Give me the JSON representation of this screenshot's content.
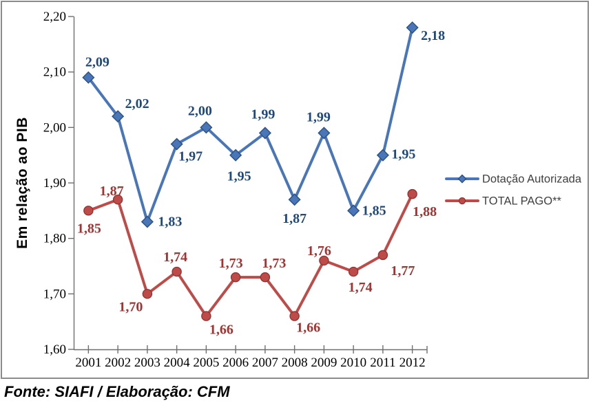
{
  "footer": {
    "text": "Fonte: SIAFI / Elaboração: CFM"
  },
  "colors": {
    "frame_border": "#8B8B8B",
    "axis": "#6E6E6E",
    "tick_label": "#000000",
    "axis_title": "#000000",
    "legend_text": "#3F3F3F",
    "footer_text": "#000000"
  },
  "chart_data": {
    "type": "line",
    "title": "",
    "xlabel": "",
    "ylabel": "Em relação ao PIB",
    "categories": [
      "2001",
      "2002",
      "2003",
      "2004",
      "2005",
      "2006",
      "2007",
      "2008",
      "2009",
      "2010",
      "2011",
      "2012"
    ],
    "ylim": [
      1.6,
      2.2
    ],
    "ytick_step": 0.1,
    "ytick_labels": [
      "1,60",
      "1,70",
      "1,80",
      "1,90",
      "2,00",
      "2,10",
      "2,20"
    ],
    "grid": false,
    "legend_position": "right",
    "series": [
      {
        "name": "Dotação Autorizada",
        "marker": "diamond",
        "line_color": "#4876B9",
        "marker_stroke": "#2F5385",
        "label_color": "#1F497D",
        "values": [
          2.09,
          2.02,
          1.83,
          1.97,
          2.0,
          1.95,
          1.99,
          1.87,
          1.99,
          1.85,
          1.95,
          2.18
        ],
        "labels": [
          "2,09",
          "2,02",
          "1,83",
          "1,97",
          "2,00",
          "1,95",
          "1,99",
          "1,87",
          "1,99",
          "1,85",
          "1,95",
          "2,18"
        ],
        "label_offsets": [
          [
            13,
            -16
          ],
          [
            28,
            -12
          ],
          [
            33,
            6
          ],
          [
            20,
            24
          ],
          [
            -9,
            -18
          ],
          [
            5,
            37
          ],
          [
            -3,
            -21
          ],
          [
            0,
            34
          ],
          [
            -8,
            -17
          ],
          [
            30,
            6
          ],
          [
            30,
            5
          ],
          [
            30,
            18
          ]
        ]
      },
      {
        "name": "TOTAL PAGO**",
        "marker": "circle",
        "line_color": "#BE4B48",
        "marker_stroke": "#8E3330",
        "label_color": "#A23331",
        "values": [
          1.85,
          1.87,
          1.7,
          1.74,
          1.66,
          1.73,
          1.73,
          1.66,
          1.76,
          1.74,
          1.77,
          1.88
        ],
        "labels": [
          "1,85",
          "1,87",
          "1,70",
          "1,74",
          "1,66",
          "1,73",
          "1,73",
          "1,66",
          "1,76",
          "1,74",
          "1,77",
          "1,88"
        ],
        "label_offsets": [
          [
            1,
            32
          ],
          [
            -9,
            -6
          ],
          [
            -24,
            25
          ],
          [
            -2,
            -15
          ],
          [
            22,
            26
          ],
          [
            -7,
            -14
          ],
          [
            13,
            -14
          ],
          [
            20,
            23
          ],
          [
            -7,
            -8
          ],
          [
            10,
            29
          ],
          [
            29,
            29
          ],
          [
            18,
            32
          ]
        ]
      }
    ]
  }
}
